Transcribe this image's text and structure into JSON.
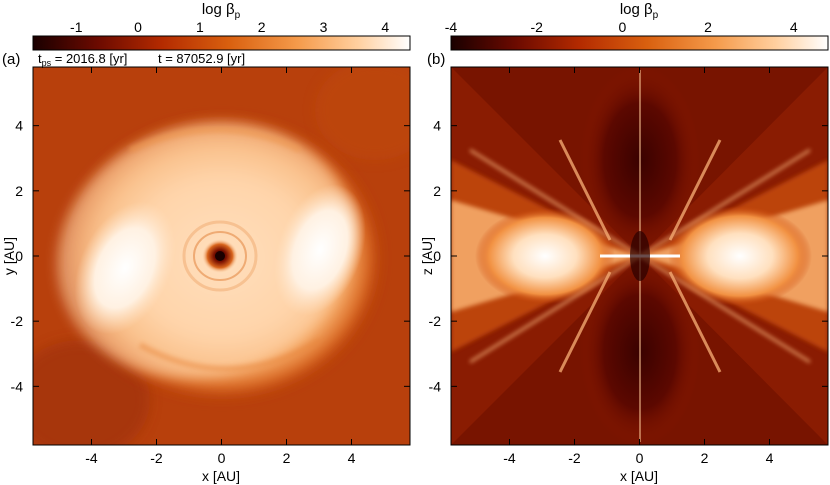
{
  "colormap": {
    "name": "heat",
    "stops": [
      "#1a0000",
      "#6b0a00",
      "#b32a00",
      "#d9600f",
      "#f59a4a",
      "#ffcf9e",
      "#ffffff"
    ]
  },
  "panels": [
    {
      "label": "(a)",
      "annotation_tps": "t",
      "annotation_tps_sub": "ps",
      "annotation_tps_value": " = 2016.8 [yr]",
      "annotation_t": "t = 87052.9 [yr]",
      "colorbar": {
        "title": "log β",
        "title_sub": "p",
        "ticks": [
          "-1",
          "0",
          "1",
          "2",
          "3",
          "4"
        ],
        "tick_values": [
          -1,
          0,
          1,
          2,
          3,
          4
        ],
        "range": [
          -1.7,
          4.4
        ]
      },
      "xlabel": "x [AU]",
      "ylabel": "y [AU]",
      "xticks": [
        "-4",
        "-2",
        "0",
        "2",
        "4"
      ],
      "yticks": [
        "4",
        "2",
        "0",
        "-2",
        "-4"
      ],
      "axis_values": [
        -4,
        -2,
        0,
        2,
        4
      ],
      "axis_range": [
        -5.8,
        5.8
      ],
      "view": "face-on"
    },
    {
      "label": "(b)",
      "colorbar": {
        "title": "log β",
        "title_sub": "p",
        "ticks": [
          "-4",
          "-2",
          "0",
          "2",
          "4"
        ],
        "tick_values": [
          -4,
          -2,
          0,
          2,
          4
        ],
        "range": [
          -4.0,
          4.8
        ]
      },
      "xlabel": "x [AU]",
      "ylabel": "z [AU]",
      "xticks": [
        "-4",
        "-2",
        "0",
        "2",
        "4"
      ],
      "yticks": [
        "4",
        "2",
        "0",
        "-2",
        "-4"
      ],
      "axis_values": [
        -4,
        -2,
        0,
        2,
        4
      ],
      "axis_range": [
        -5.8,
        5.8
      ],
      "view": "edge-on"
    }
  ]
}
